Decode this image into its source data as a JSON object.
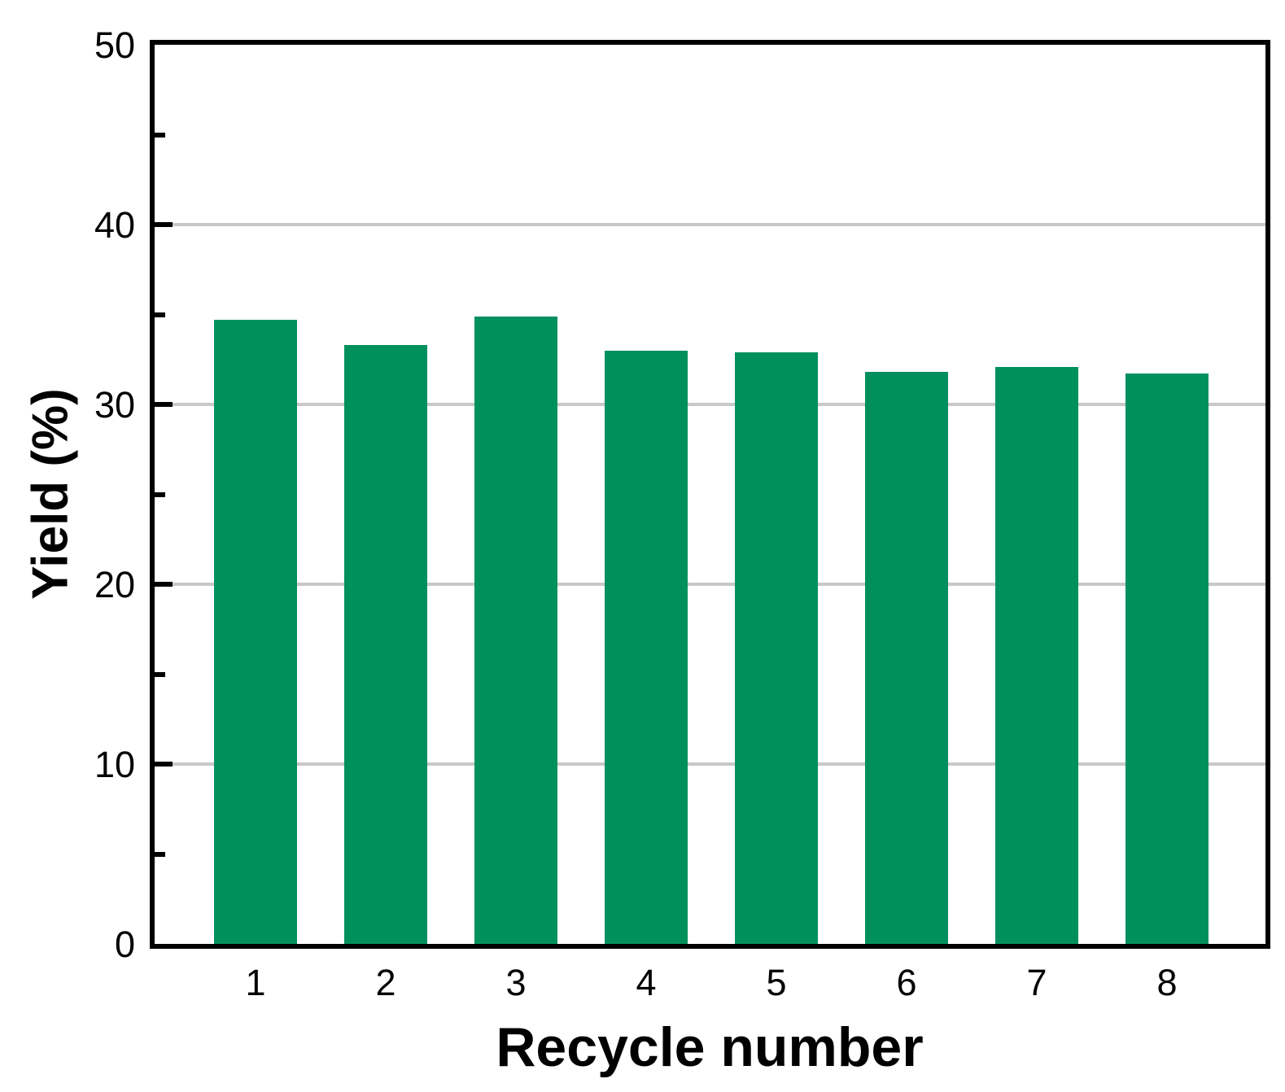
{
  "chart_data": {
    "type": "bar",
    "title": "",
    "xlabel": "Recycle number",
    "ylabel": "Yield (%)",
    "categories": [
      "1",
      "2",
      "3",
      "4",
      "5",
      "6",
      "7",
      "8"
    ],
    "values": [
      34.7,
      33.3,
      34.9,
      33.0,
      32.9,
      31.8,
      32.1,
      31.7
    ],
    "ylim": [
      0,
      50
    ],
    "ytick_step": 10,
    "ytick_labels": [
      "0",
      "10",
      "20",
      "30",
      "40",
      "50"
    ],
    "minor_tick_step": 5,
    "grid": "horizontal major gridlines at 10,20,30,40 behind bars",
    "legend_position": "none",
    "colors": {
      "bar": "#00905E",
      "gridline": "#C8C8C8",
      "axis": "#000000",
      "text": "#000000",
      "background": "#FFFFFF"
    }
  }
}
